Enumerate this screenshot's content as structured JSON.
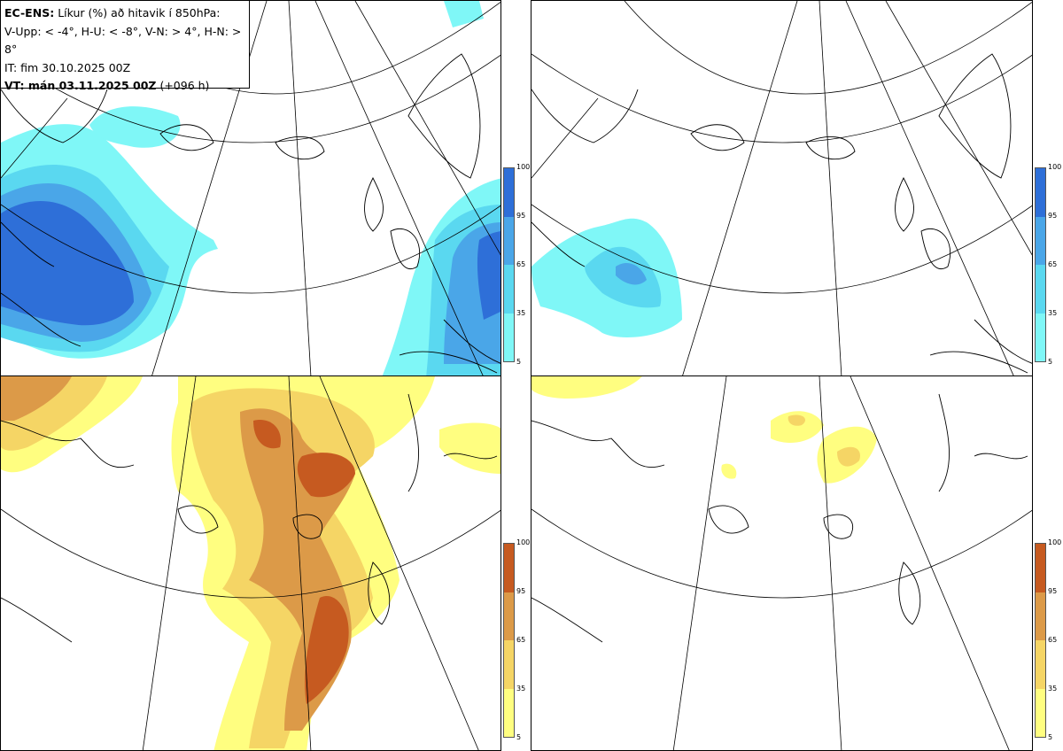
{
  "header": {
    "title_bold": "EC-ENS:",
    "title_rest": "Líkur (%) að hitavik í 850hPa:",
    "line2": "V-Upp: < -4°, H-U: < -8°, V-N: > 4°, H-N: > 8°",
    "line3": "IT: fim 30.10.2025 00Z",
    "line4_bold": "VT: mán 03.11.2025 00Z",
    "line4_rest": "(+096 h)"
  },
  "colorbar_ticks": [
    "100",
    "95",
    "65",
    "35",
    "5"
  ],
  "colors": {
    "cold": [
      "#7ff7f7",
      "#5ad8f0",
      "#4aa6e8",
      "#2e6fd8"
    ],
    "warm": [
      "#fffe80",
      "#f5d565",
      "#dc9a48",
      "#c65a20"
    ]
  },
  "panels": [
    {
      "name": "top-left-cold-minus4"
    },
    {
      "name": "top-right-cold-minus8"
    },
    {
      "name": "bottom-left-warm-plus4"
    },
    {
      "name": "bottom-right-warm-plus8"
    }
  ]
}
